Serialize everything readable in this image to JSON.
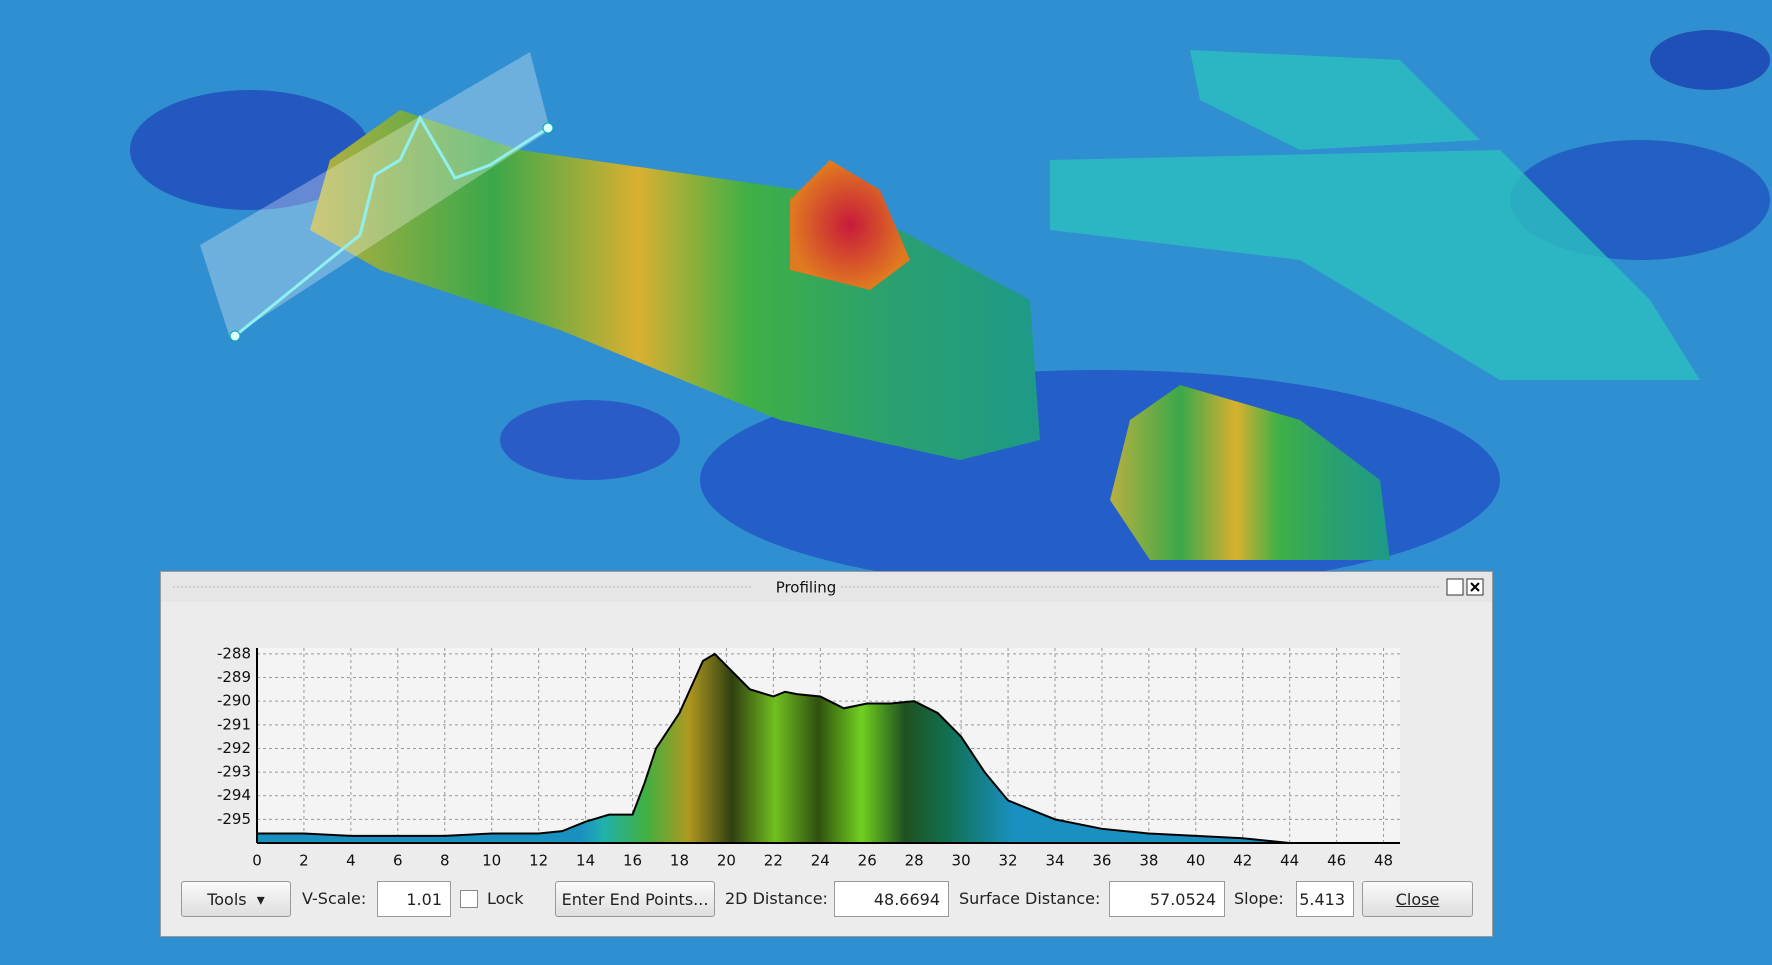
{
  "dialog": {
    "title": "Profiling",
    "controls": {
      "tools": "Tools",
      "vscale_label": "V-Scale:",
      "vscale_value": "1.01",
      "lock": "Lock",
      "enter_end_points": "Enter End Points...",
      "distance_2d_label": "2D Distance:",
      "distance_2d_value": "48.6694",
      "surface_distance_label": "Surface Distance:",
      "surface_distance_value": "57.0524",
      "slope_label": "Slope:",
      "slope_value": "5.413",
      "close": "Close"
    }
  },
  "chart_data": {
    "type": "area",
    "x": [
      0,
      2,
      4,
      6,
      8,
      10,
      12,
      13,
      14,
      15,
      16,
      16.5,
      17,
      18,
      19,
      19.5,
      20,
      21,
      22,
      22.5,
      23,
      24,
      25,
      26,
      27,
      28,
      29,
      30,
      31,
      32,
      33,
      34,
      36,
      38,
      40,
      42,
      44,
      46
    ],
    "values": [
      -295.6,
      -295.6,
      -295.7,
      -295.7,
      -295.7,
      -295.6,
      -295.6,
      -295.5,
      -295.1,
      -294.8,
      -294.8,
      -293.5,
      -292,
      -290.5,
      -288.3,
      -288,
      -288.5,
      -289.5,
      -289.8,
      -289.6,
      -289.7,
      -289.8,
      -290.3,
      -290.1,
      -290.1,
      -290,
      -290.5,
      -291.5,
      -293,
      -294.2,
      -294.6,
      -295,
      -295.4,
      -295.6,
      -295.7,
      -295.8,
      -296,
      -296
    ],
    "xlim": [
      0,
      48.7
    ],
    "ylim": [
      -296,
      -287.75
    ],
    "xticks": [
      0,
      2,
      4,
      6,
      8,
      10,
      12,
      14,
      16,
      18,
      20,
      22,
      24,
      26,
      28,
      30,
      32,
      34,
      36,
      38,
      40,
      42,
      44,
      46,
      48
    ],
    "yticks": [
      -288,
      -289,
      -290,
      -291,
      -292,
      -293,
      -294,
      -295
    ],
    "grid": true
  }
}
